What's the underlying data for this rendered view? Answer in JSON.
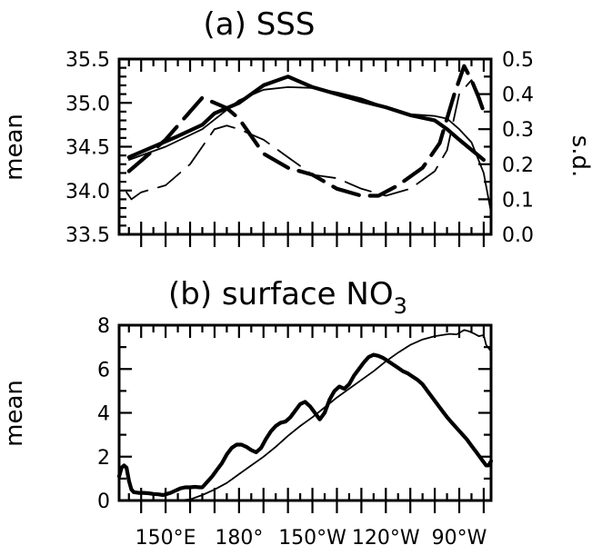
{
  "chart_data": [
    {
      "type": "line",
      "title": "(a) SSS",
      "ylabel": "mean",
      "y2label": "s.d.",
      "ylim": [
        33.5,
        35.5
      ],
      "y2lim": [
        0.0,
        0.5
      ],
      "yticks": [
        "33.5",
        "34.0",
        "34.5",
        "35.0",
        "35.5"
      ],
      "y2ticks": [
        "0.0",
        "0.1",
        "0.2",
        "0.3",
        "0.4",
        "0.5"
      ],
      "xlim": [
        131,
        283
      ],
      "xunits": "degrees east",
      "series": [
        {
          "style": "thick-solid",
          "axis": "left",
          "x": [
            135,
            145,
            155,
            165,
            170,
            180,
            190,
            200,
            210,
            220,
            230,
            240,
            250,
            260,
            265,
            270,
            280
          ],
          "y": [
            34.38,
            34.5,
            34.62,
            34.75,
            34.88,
            35.0,
            35.2,
            35.3,
            35.18,
            35.1,
            35.02,
            34.95,
            34.86,
            34.8,
            34.7,
            34.58,
            34.35
          ]
        },
        {
          "style": "thin-solid",
          "axis": "left",
          "x": [
            135,
            150,
            165,
            180,
            190,
            200,
            210,
            220,
            230,
            240,
            250,
            260,
            265,
            270,
            275,
            280,
            283
          ],
          "y": [
            34.35,
            34.5,
            34.7,
            35.03,
            35.15,
            35.18,
            35.17,
            35.12,
            35.05,
            34.95,
            34.87,
            34.85,
            34.82,
            34.7,
            34.55,
            34.2,
            33.75
          ]
        },
        {
          "style": "thick-dash",
          "axis": "right",
          "x": [
            135,
            150,
            160,
            165,
            175,
            180,
            190,
            200,
            210,
            220,
            230,
            237,
            245,
            255,
            262,
            268,
            272,
            275,
            278,
            280
          ],
          "y": [
            0.18,
            0.27,
            0.35,
            0.39,
            0.36,
            0.33,
            0.23,
            0.19,
            0.17,
            0.13,
            0.11,
            0.11,
            0.14,
            0.19,
            0.26,
            0.4,
            0.48,
            0.44,
            0.39,
            0.35
          ]
        },
        {
          "style": "thin-dash",
          "axis": "right",
          "x": [
            134,
            136,
            140,
            150,
            160,
            170,
            175,
            180,
            190,
            200,
            210,
            220,
            230,
            240,
            250,
            260,
            265,
            270,
            275,
            278,
            283
          ],
          "y": [
            0.12,
            0.1,
            0.12,
            0.14,
            0.2,
            0.3,
            0.31,
            0.3,
            0.27,
            0.22,
            0.17,
            0.16,
            0.13,
            0.11,
            0.13,
            0.18,
            0.24,
            0.4,
            0.44,
            0.4,
            0.4
          ]
        }
      ]
    },
    {
      "type": "line",
      "title_main": "(b) surface NO",
      "title_sub": "3",
      "ylabel": "mean",
      "ylim": [
        0,
        8
      ],
      "yticks": [
        "0",
        "2",
        "4",
        "6",
        "8"
      ],
      "xlim": [
        131,
        283
      ],
      "xunits": "degrees east",
      "xtick_labels": [
        {
          "x": 150,
          "label": "150°E"
        },
        {
          "x": 180,
          "label": "180°"
        },
        {
          "x": 210,
          "label": "150°W"
        },
        {
          "x": 240,
          "label": "120°W"
        },
        {
          "x": 270,
          "label": "90°W"
        }
      ],
      "series": [
        {
          "style": "thick-solid",
          "x": [
            131,
            132,
            133,
            134,
            135,
            136,
            137,
            139,
            141,
            143,
            145,
            147,
            149,
            150,
            152,
            154,
            156,
            158,
            160,
            162,
            164,
            165,
            167,
            169,
            171,
            173,
            175,
            177,
            179,
            181,
            183,
            185,
            187,
            189,
            191,
            193,
            195,
            197,
            199,
            201,
            203,
            205,
            207,
            209,
            211,
            213,
            215,
            217,
            219,
            221,
            223,
            225,
            227,
            229,
            231,
            233,
            235,
            237,
            239,
            241,
            243,
            245,
            247,
            249,
            251,
            253,
            255,
            257,
            259,
            261,
            263,
            265,
            267,
            269,
            271,
            273,
            275,
            277,
            279,
            281,
            282,
            283
          ],
          "y": [
            1.1,
            1.5,
            1.6,
            1.5,
            0.9,
            0.5,
            0.38,
            0.35,
            0.35,
            0.33,
            0.3,
            0.28,
            0.25,
            0.28,
            0.35,
            0.45,
            0.55,
            0.6,
            0.6,
            0.62,
            0.6,
            0.6,
            0.85,
            1.1,
            1.4,
            1.7,
            2.1,
            2.4,
            2.55,
            2.55,
            2.45,
            2.3,
            2.2,
            2.4,
            2.8,
            3.15,
            3.4,
            3.55,
            3.6,
            3.8,
            4.1,
            4.4,
            4.5,
            4.3,
            4.0,
            3.7,
            4.0,
            4.6,
            5.0,
            5.2,
            5.1,
            5.3,
            5.7,
            6.0,
            6.3,
            6.55,
            6.65,
            6.6,
            6.5,
            6.35,
            6.2,
            6.05,
            5.9,
            5.8,
            5.65,
            5.5,
            5.3,
            5.0,
            4.7,
            4.4,
            4.1,
            3.8,
            3.55,
            3.3,
            3.05,
            2.8,
            2.5,
            2.2,
            1.9,
            1.6,
            1.6,
            1.8
          ]
        },
        {
          "style": "thin-solid",
          "x": [
            155,
            160,
            165,
            170,
            175,
            180,
            185,
            190,
            195,
            200,
            205,
            210,
            215,
            220,
            225,
            230,
            235,
            240,
            245,
            250,
            255,
            260,
            263,
            266,
            269,
            272,
            274,
            276,
            278,
            280,
            281,
            283
          ],
          "y": [
            0.0,
            0.05,
            0.25,
            0.5,
            0.8,
            1.2,
            1.6,
            2.0,
            2.45,
            2.95,
            3.4,
            3.8,
            4.25,
            4.7,
            5.1,
            5.5,
            5.9,
            6.35,
            6.75,
            7.1,
            7.35,
            7.5,
            7.55,
            7.6,
            7.58,
            7.78,
            7.72,
            7.62,
            7.5,
            7.55,
            7.1,
            6.8
          ]
        }
      ]
    }
  ]
}
